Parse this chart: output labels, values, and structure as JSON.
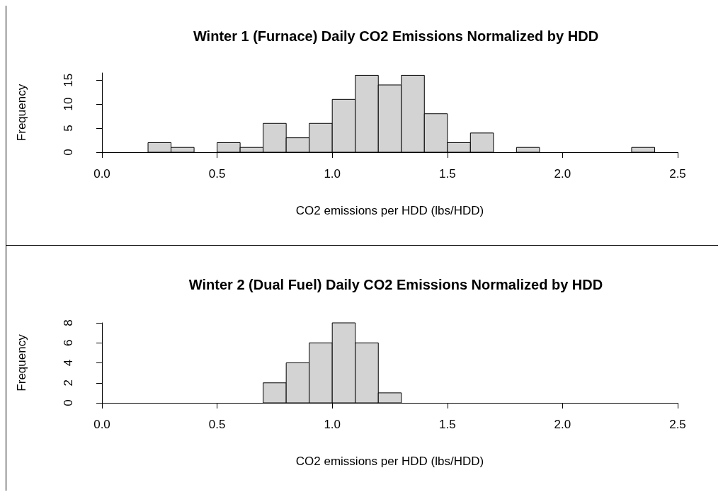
{
  "chart_data": [
    {
      "type": "histogram",
      "title": "Winter 1 (Furnace) Daily CO2 Emissions Normalized by HDD",
      "xlabel": "CO2 emissions per HDD (lbs/HDD)",
      "ylabel": "Frequency",
      "color": "#d3d3d3",
      "bins": [
        0.2,
        0.3,
        0.4,
        0.5,
        0.6,
        0.7,
        0.8,
        0.9,
        1.0,
        1.1,
        1.2,
        1.3,
        1.4,
        1.5,
        1.6,
        1.7,
        1.8,
        1.9,
        2.0,
        2.1,
        2.2,
        2.3,
        2.4
      ],
      "values": [
        2,
        1,
        0,
        2,
        1,
        6,
        3,
        6,
        11,
        16,
        14,
        16,
        8,
        2,
        4,
        0,
        1,
        0,
        0,
        0,
        0,
        1
      ],
      "xlim": [
        0,
        2.5
      ],
      "xticks": [
        {
          "value": 0,
          "label": "0.0"
        },
        {
          "value": 0.5,
          "label": "0.5"
        },
        {
          "value": 1,
          "label": "1.0"
        },
        {
          "value": 1.5,
          "label": "1.5"
        },
        {
          "value": 2,
          "label": "2.0"
        },
        {
          "value": 2.5,
          "label": "2.5"
        }
      ],
      "ylim": [
        0,
        16.5
      ],
      "yticks": [
        0,
        5,
        10,
        15
      ],
      "grid": false
    },
    {
      "type": "histogram",
      "title": "Winter 2 (Dual Fuel) Daily CO2 Emissions Normalized by HDD",
      "xlabel": "CO2 emissions per HDD (lbs/HDD)",
      "ylabel": "Frequency",
      "color": "#d3d3d3",
      "bins": [
        0.7,
        0.8,
        0.9,
        1.0,
        1.1,
        1.2,
        1.3
      ],
      "values": [
        2,
        4,
        6,
        8,
        6,
        1
      ],
      "xlim": [
        0,
        2.5
      ],
      "xticks": [
        {
          "value": 0,
          "label": "0.0"
        },
        {
          "value": 0.5,
          "label": "0.5"
        },
        {
          "value": 1,
          "label": "1.0"
        },
        {
          "value": 1.5,
          "label": "1.5"
        },
        {
          "value": 2,
          "label": "2.0"
        },
        {
          "value": 2.5,
          "label": "2.5"
        }
      ],
      "ylim": [
        0,
        8
      ],
      "yticks": [
        0,
        2,
        4,
        6,
        8
      ],
      "grid": false
    }
  ]
}
